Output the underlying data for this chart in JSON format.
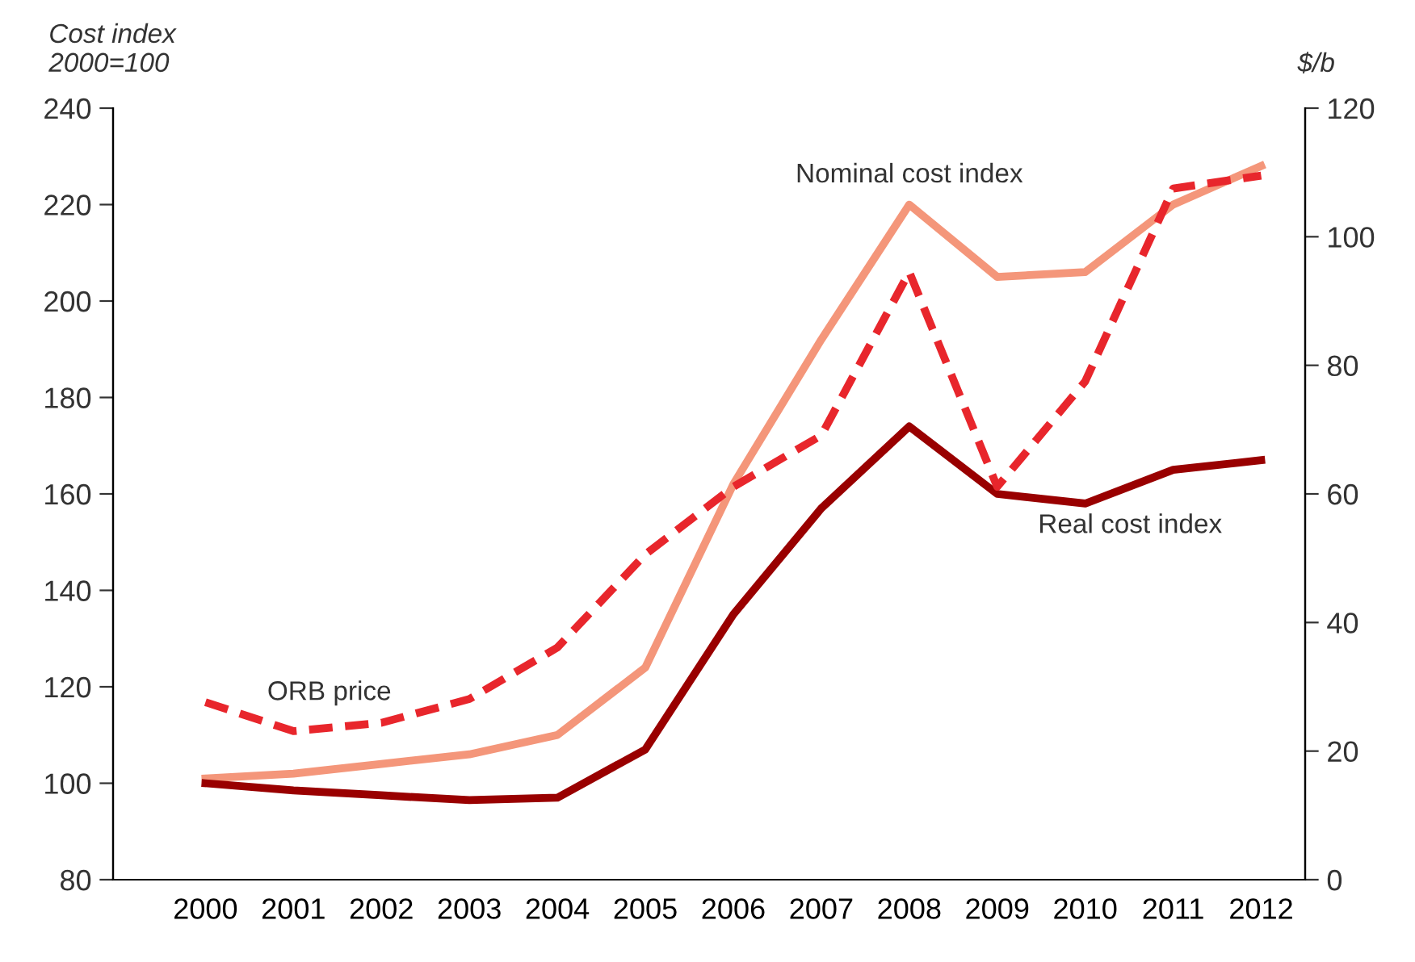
{
  "chart_data": {
    "type": "line",
    "ylabel": "Cost index\n2000=100",
    "y2label": "$/b",
    "categories": [
      "2000",
      "2001",
      "2002",
      "2003",
      "2004",
      "2005",
      "2006",
      "2007",
      "2008",
      "2009",
      "2010",
      "2011",
      "2012"
    ],
    "series": [
      {
        "name": "Nominal cost index",
        "color": "#f4967a",
        "line_style": "solid",
        "values": [
          101,
          102,
          104,
          106,
          110,
          124,
          162,
          192,
          220,
          205,
          206,
          220,
          228
        ]
      },
      {
        "name": "Real cost index",
        "color": "#990000",
        "line_style": "solid",
        "values": [
          100,
          98.5,
          97.5,
          96.5,
          97,
          107,
          135,
          157,
          174,
          160,
          158,
          165,
          167
        ]
      },
      {
        "name": "ORB price",
        "color": "#e8262c",
        "line_style": "dashed",
        "axis": "y2",
        "values": [
          27.6,
          23.1,
          24.4,
          28.1,
          36.1,
          50.6,
          61.1,
          69.1,
          94.5,
          61.1,
          77.5,
          107.5,
          109.5
        ]
      }
    ],
    "ylim": [
      80,
      240
    ],
    "yticks": [
      80,
      100,
      120,
      140,
      160,
      180,
      200,
      220,
      240
    ],
    "y2lim": [
      0,
      120
    ],
    "y2ticks": [
      0,
      20,
      40,
      60,
      80,
      100,
      120
    ],
    "grid": false,
    "legend": false,
    "marker": "none"
  }
}
